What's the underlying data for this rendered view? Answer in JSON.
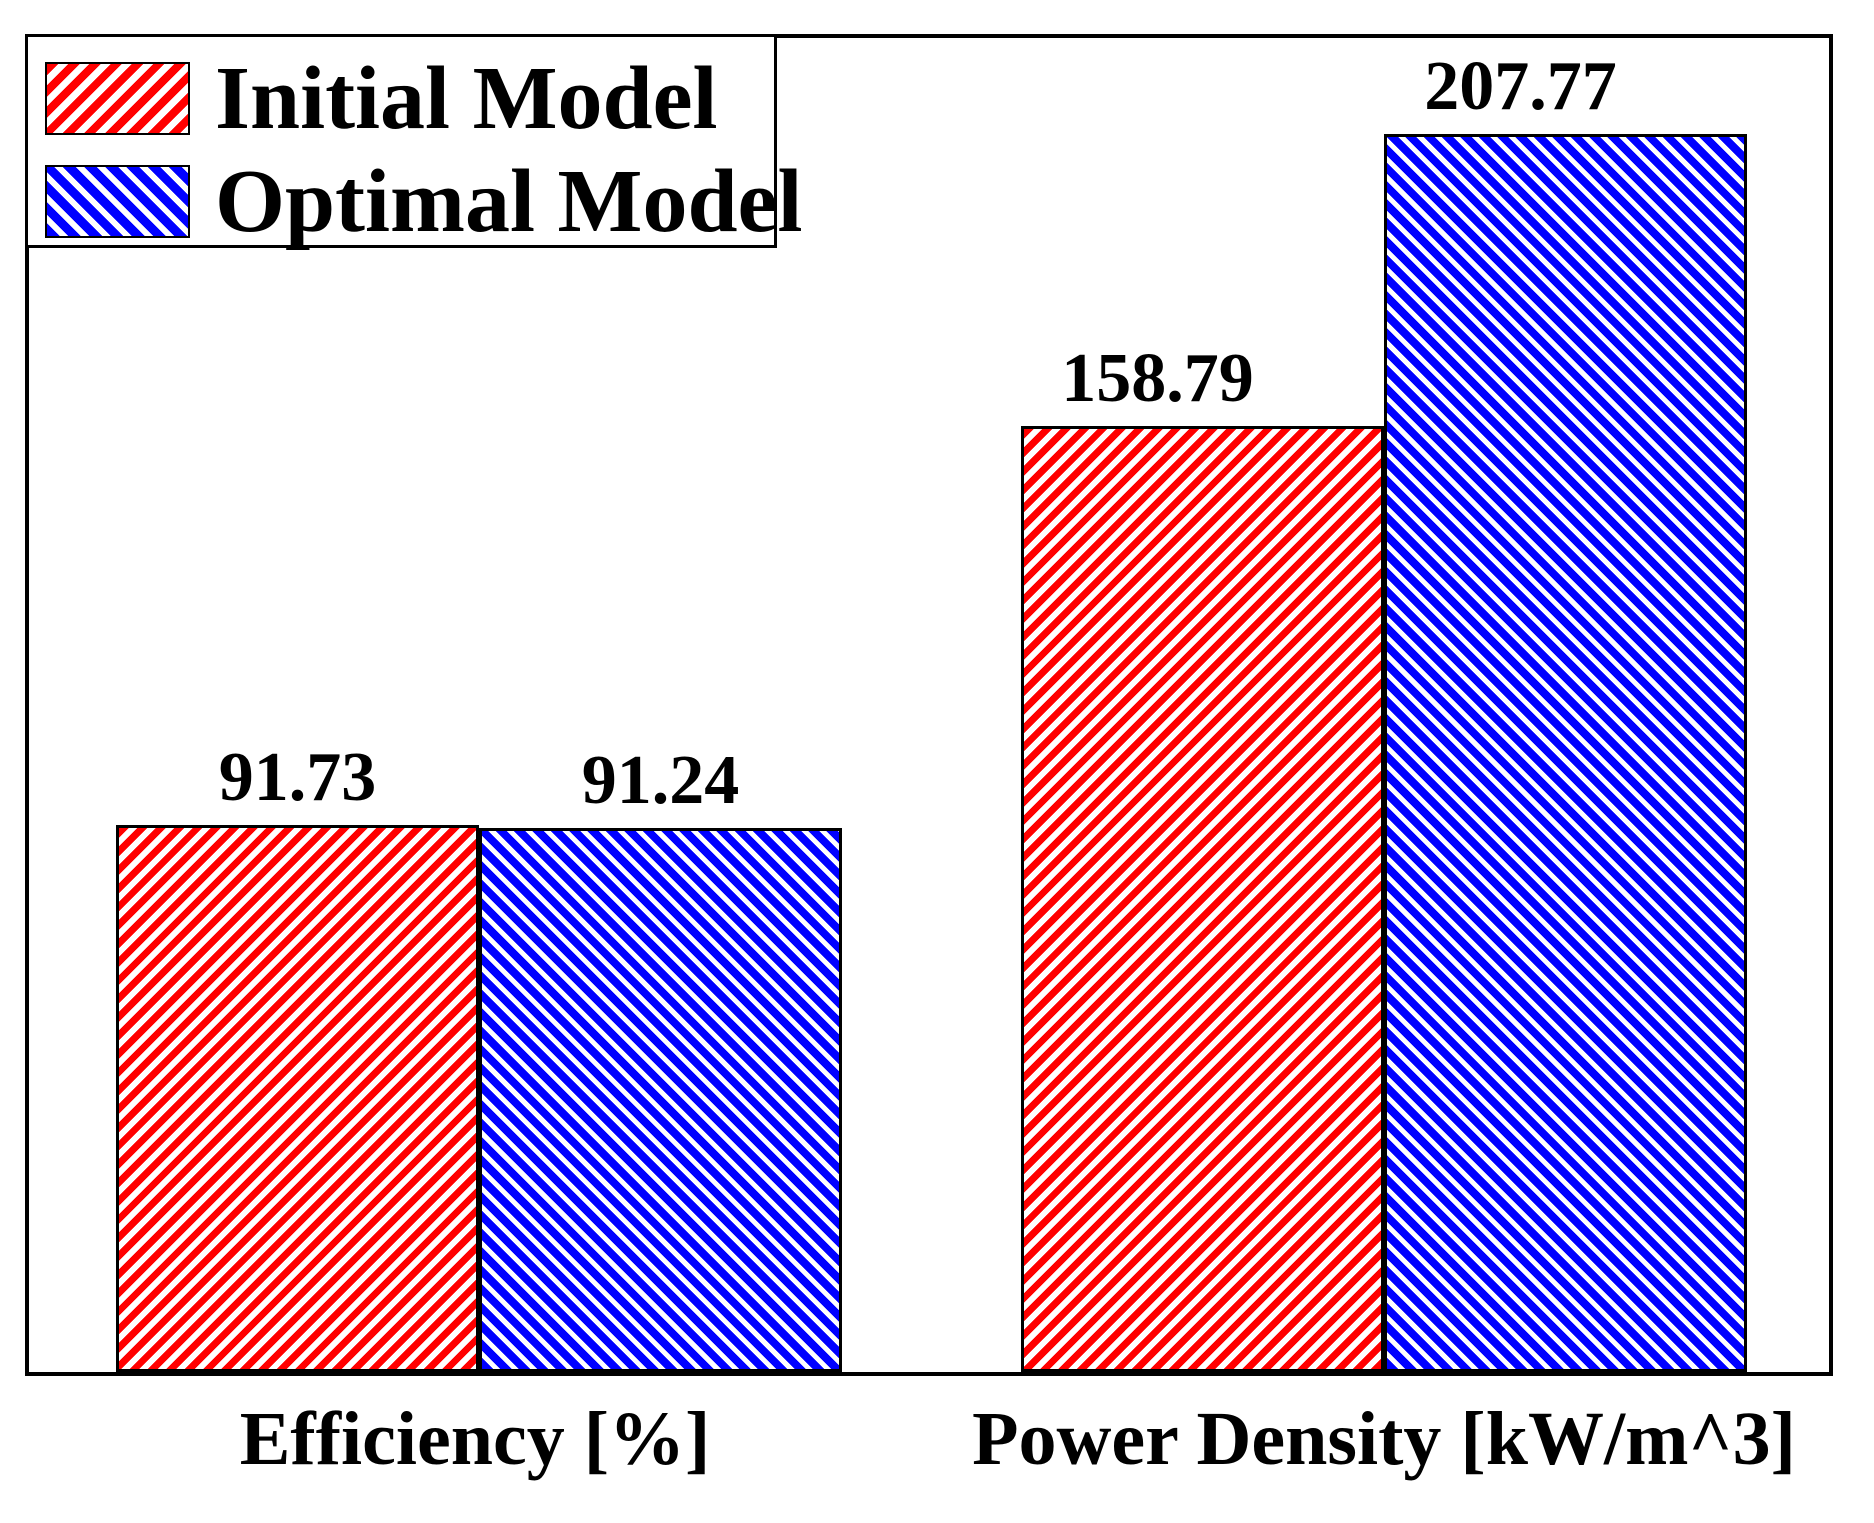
{
  "figure": {
    "background": "#ffffff",
    "frame_color": "#000000"
  },
  "chart_data": {
    "type": "bar",
    "title": "",
    "xlabel": "",
    "ylabel": "",
    "categories": [
      "Efficiency [%]",
      "Power Density [kW/m^3]"
    ],
    "series": [
      {
        "name": "Initial Model",
        "color": "#ff0000",
        "hatch": "/",
        "values": [
          91.73,
          158.79
        ],
        "labels": [
          "91.73",
          "158.79"
        ]
      },
      {
        "name": "Optimal Model",
        "color": "#0000ff",
        "hatch": "\\",
        "values": [
          91.24,
          207.77
        ],
        "labels": [
          "91.24",
          "207.77"
        ]
      }
    ],
    "ylim": [
      0,
      225
    ],
    "grid": false,
    "yaxis_visible": false,
    "legend_position": "upper-left",
    "bar_value_labels": true,
    "bar_edge_color": "#000000",
    "text_color": "#000000"
  }
}
